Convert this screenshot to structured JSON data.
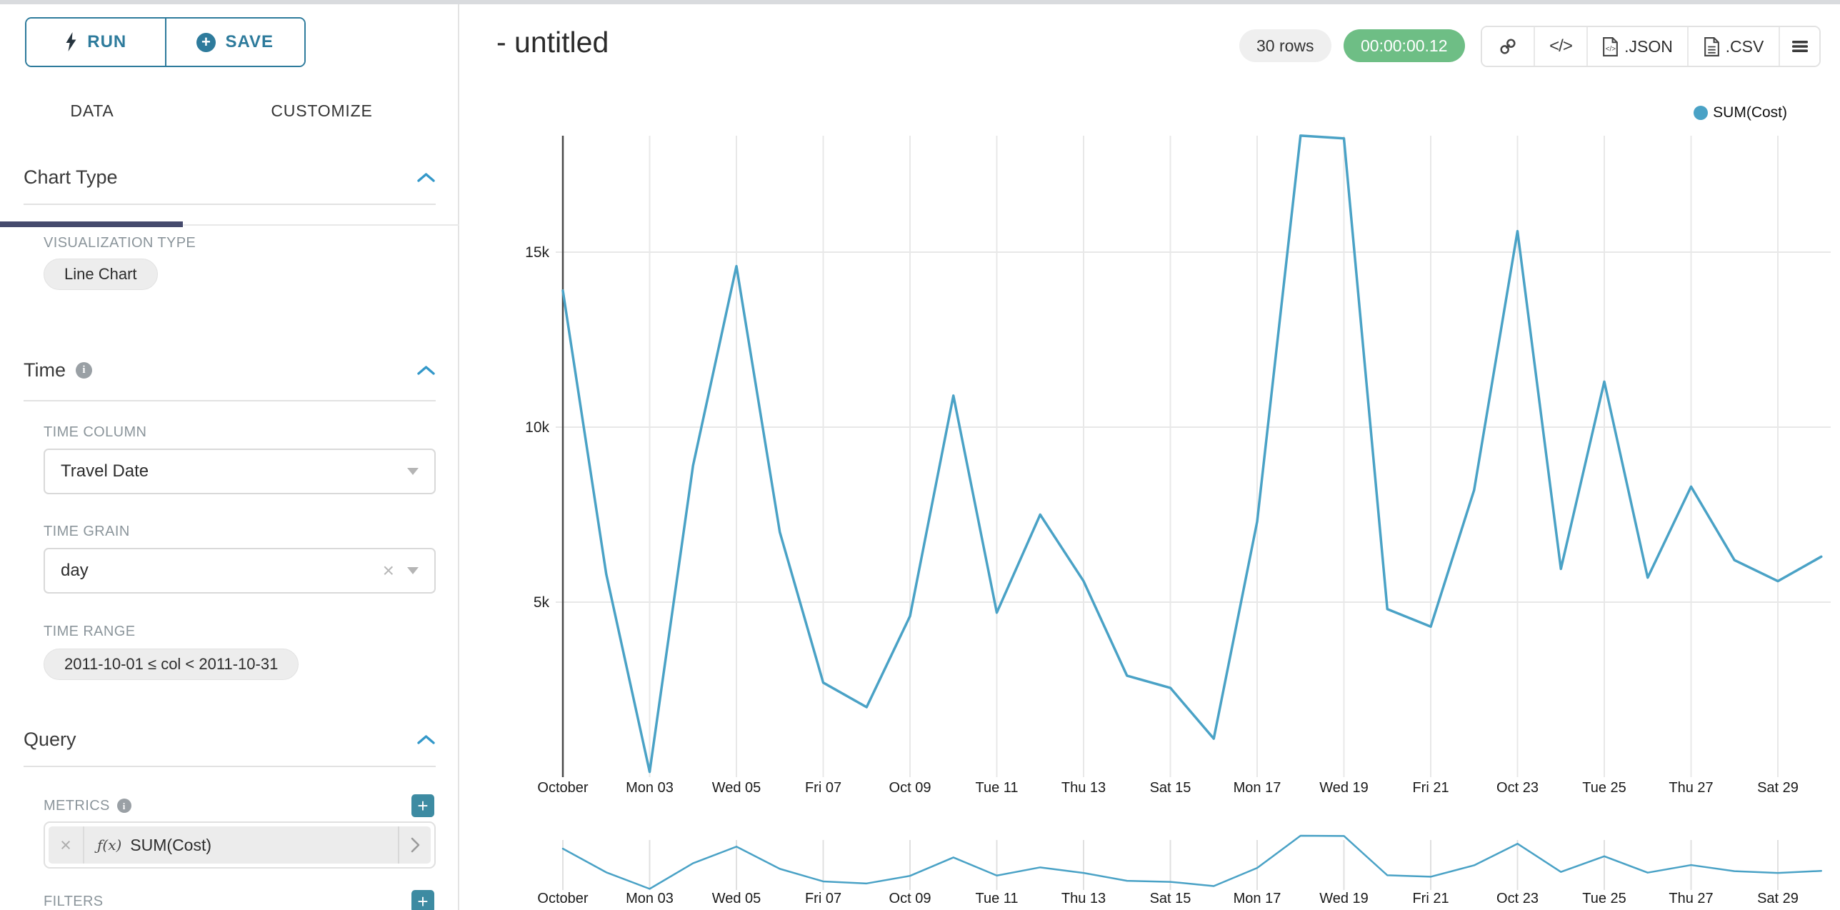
{
  "colors": {
    "line": "#4aa2c6",
    "button_blue": "#2e7b9c",
    "accent_teal": "#3d8ba2",
    "timer_green": "#6ebe85",
    "tab_indicator": "#454a6d",
    "chevron_blue": "#3498c9",
    "grid": "#e8e8e8"
  },
  "sidebar": {
    "run_label": "RUN",
    "save_label": "SAVE",
    "tabs": [
      {
        "label": "DATA"
      },
      {
        "label": "CUSTOMIZE"
      }
    ],
    "chart_type": {
      "title": "Chart Type",
      "viz_label": "VISUALIZATION TYPE",
      "viz_value": "Line Chart"
    },
    "time": {
      "title": "Time",
      "column_label": "TIME COLUMN",
      "column_value": "Travel Date",
      "grain_label": "TIME GRAIN",
      "grain_value": "day",
      "range_label": "TIME RANGE",
      "range_value": "2011-10-01 ≤ col < 2011-10-31"
    },
    "query": {
      "title": "Query",
      "metrics_label": "METRICS",
      "metric_fx": "ƒ(x)",
      "metric_value": "SUM(Cost)",
      "filters_label": "FILTERS"
    }
  },
  "header": {
    "title": "- untitled",
    "row_count": "30 rows",
    "query_time": "00:00:00.12",
    "code_glyph": "</>",
    "json_label": ".JSON",
    "csv_label": ".CSV"
  },
  "legend": {
    "label": "SUM(Cost)"
  },
  "chart_data": {
    "type": "line",
    "title": "",
    "xlabel": "",
    "ylabel": "",
    "x": [
      "2011-10-01",
      "2011-10-02",
      "2011-10-03",
      "2011-10-04",
      "2011-10-05",
      "2011-10-06",
      "2011-10-07",
      "2011-10-08",
      "2011-10-09",
      "2011-10-10",
      "2011-10-11",
      "2011-10-12",
      "2011-10-13",
      "2011-10-14",
      "2011-10-15",
      "2011-10-16",
      "2011-10-17",
      "2011-10-18",
      "2011-10-19",
      "2011-10-20",
      "2011-10-21",
      "2011-10-22",
      "2011-10-23",
      "2011-10-24",
      "2011-10-25",
      "2011-10-26",
      "2011-10-27",
      "2011-10-28",
      "2011-10-29",
      "2011-10-30"
    ],
    "x_tick_labels": [
      "October",
      "Mon 03",
      "Wed 05",
      "Fri 07",
      "Oct 09",
      "Tue 11",
      "Thu 13",
      "Sat 15",
      "Mon 17",
      "Wed 19",
      "Fri 21",
      "Oct 23",
      "Tue 25",
      "Thu 27",
      "Sat 29"
    ],
    "y_ticks": [
      5000,
      10000,
      15000
    ],
    "y_tick_labels": [
      "5k",
      "10k",
      "15k"
    ],
    "ylim": [
      0,
      18400
    ],
    "grid": true,
    "legend_position": "top-right",
    "series": [
      {
        "name": "SUM(Cost)",
        "values": [
          13900,
          5800,
          150,
          8900,
          14600,
          7000,
          2700,
          2000,
          4600,
          10900,
          4700,
          7500,
          5600,
          2900,
          2550,
          1100,
          7300,
          18330,
          18250,
          4800,
          4300,
          8200,
          15600,
          5950,
          11300,
          5700,
          8300,
          6200,
          5600,
          6300
        ]
      }
    ]
  }
}
